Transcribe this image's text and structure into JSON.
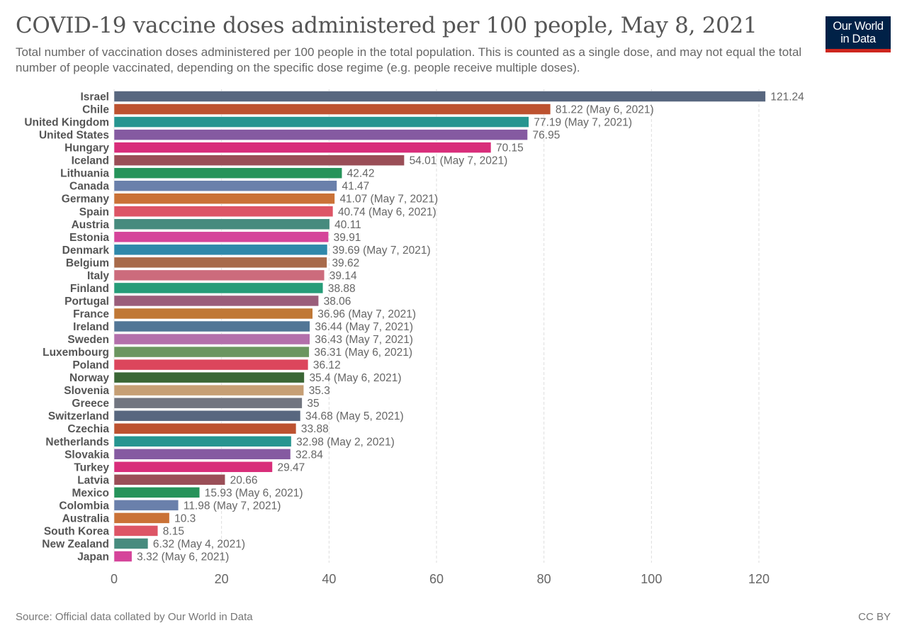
{
  "header": {
    "title": "COVID-19 vaccine doses administered per 100 people, May 8, 2021",
    "subtitle": "Total number of vaccination doses administered per 100 people in the total population. This is counted as a single dose, and may not equal the total number of people vaccinated, depending on the specific dose regime (e.g. people receive multiple doses).",
    "logo_line1": "Our World",
    "logo_line2": "in Data"
  },
  "footer": {
    "source": "Source: Official data collated by Our World in Data",
    "license": "CC BY"
  },
  "chart_data": {
    "type": "bar",
    "orientation": "horizontal",
    "title": "COVID-19 vaccine doses administered per 100 people, May 8, 2021",
    "xlabel": "",
    "ylabel": "",
    "xlim": [
      0,
      130
    ],
    "xticks": [
      0,
      20,
      40,
      60,
      80,
      100,
      120
    ],
    "grid": "vertical dashed",
    "categories": [
      "Israel",
      "Chile",
      "United Kingdom",
      "United States",
      "Hungary",
      "Iceland",
      "Lithuania",
      "Canada",
      "Germany",
      "Spain",
      "Austria",
      "Estonia",
      "Denmark",
      "Belgium",
      "Italy",
      "Finland",
      "Portugal",
      "France",
      "Ireland",
      "Sweden",
      "Luxembourg",
      "Poland",
      "Norway",
      "Slovenia",
      "Greece",
      "Switzerland",
      "Czechia",
      "Netherlands",
      "Slovakia",
      "Turkey",
      "Latvia",
      "Mexico",
      "Colombia",
      "Australia",
      "South Korea",
      "New Zealand",
      "Japan"
    ],
    "values": [
      121.24,
      81.22,
      77.19,
      76.95,
      70.15,
      54.01,
      42.42,
      41.47,
      41.07,
      40.74,
      40.11,
      39.91,
      39.69,
      39.62,
      39.14,
      38.88,
      38.06,
      36.96,
      36.44,
      36.43,
      36.31,
      36.12,
      35.4,
      35.3,
      35,
      34.68,
      33.88,
      32.98,
      32.84,
      29.47,
      20.66,
      15.93,
      11.98,
      10.3,
      8.15,
      6.32,
      3.32
    ],
    "value_labels": [
      "121.24",
      "81.22 (May 6, 2021)",
      "77.19 (May 7, 2021)",
      "76.95",
      "70.15",
      "54.01 (May 7, 2021)",
      "42.42",
      "41.47",
      "41.07 (May 7, 2021)",
      "40.74 (May 6, 2021)",
      "40.11",
      "39.91",
      "39.69 (May 7, 2021)",
      "39.62",
      "39.14",
      "38.88",
      "38.06",
      "36.96 (May 7, 2021)",
      "36.44 (May 7, 2021)",
      "36.43 (May 7, 2021)",
      "36.31 (May 6, 2021)",
      "36.12",
      "35.4 (May 6, 2021)",
      "35.3",
      "35",
      "34.68 (May 5, 2021)",
      "33.88",
      "32.98 (May 2, 2021)",
      "32.84",
      "29.47",
      "20.66",
      "15.93 (May 6, 2021)",
      "11.98 (May 7, 2021)",
      "10.3",
      "8.15",
      "6.32 (May 4, 2021)",
      "3.32 (May 6, 2021)"
    ],
    "colors": [
      "#58677f",
      "#bd5230",
      "#279590",
      "#855aa1",
      "#d82d7a",
      "#9a4e57",
      "#26935a",
      "#6a80ab",
      "#ca7237",
      "#dd5566",
      "#478b7e",
      "#d5449a",
      "#2f88aa",
      "#a86a4a",
      "#cc6b7c",
      "#269c78",
      "#9a5d7a",
      "#c07836",
      "#527696",
      "#b36fab",
      "#6b9660",
      "#dc465c",
      "#3b6635",
      "#c69f75",
      "#717580",
      "#58677f",
      "#bd5230",
      "#279590",
      "#855aa1",
      "#d82d7a",
      "#9a4e57",
      "#26935a",
      "#6a80ab",
      "#ca7237",
      "#dd5566",
      "#478b7e",
      "#d5449a"
    ]
  }
}
